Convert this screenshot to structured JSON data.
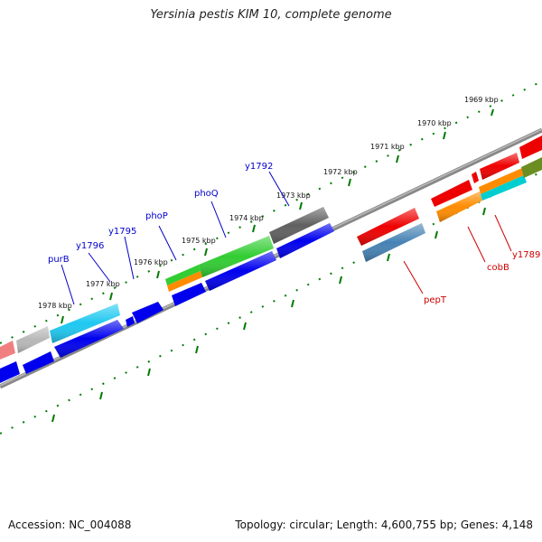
{
  "title": "Yersinia pestis KIM 10, complete genome",
  "accession": "Accession: NC_004088",
  "summary": "Topology: circular; Length: 4,600,755 bp; Genes: 4,148",
  "colors": {
    "scale_ticks": "#007a00",
    "backbone": "#808080",
    "forward_label": "#0000cc",
    "reverse_label": "#cc0000"
  },
  "scale_labels": [
    "1969 kbp",
    "1970 kbp",
    "1971 kbp",
    "1972 kbp",
    "1973 kbp",
    "1974 kbp",
    "1975 kbp",
    "1976 kbp",
    "1977 kbp",
    "1978 kbp"
  ],
  "forward_gene_labels": [
    "y1792",
    "phoQ",
    "phoP",
    "y1795",
    "y1796",
    "purB"
  ],
  "reverse_gene_labels": [
    "pepT",
    "cobB",
    "y1789"
  ],
  "gene_colors": {
    "pepT": "#4682b4",
    "cobB": "#ff8c00",
    "phoQ": "#32cd32",
    "phoP": "#32cd32",
    "purB": "#1ec8f0",
    "y1792": "#606060",
    "reverse_cds": "#ee0000",
    "forward_cds": "#0000ee"
  }
}
